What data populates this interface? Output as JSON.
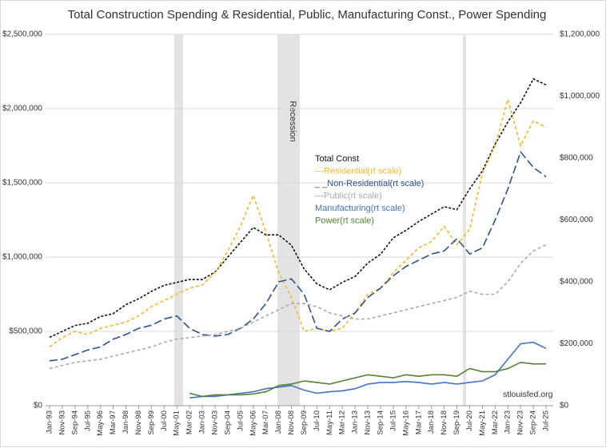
{
  "chart_data": {
    "type": "line",
    "title": "Total Construction Spending & Residential, Public, Manufacturing Const., Power Spending",
    "annotation": "Recession",
    "source": "stlouisfed.org",
    "categories": [
      "Jan-93",
      "Nov-93",
      "Sep-94",
      "Jul-95",
      "May-96",
      "Mar-97",
      "Jan-98",
      "Nov-98",
      "Sep-99",
      "Jul-00",
      "May-01",
      "Mar-02",
      "Jan-03",
      "Nov-03",
      "Sep-04",
      "Jul-05",
      "May-06",
      "Mar-07",
      "Jan-08",
      "Nov-08",
      "Sep-09",
      "Jul-10",
      "May-11",
      "Mar-12",
      "Jan-13",
      "Nov-13",
      "Sep-14",
      "Jul-15",
      "May-16",
      "Mar-17",
      "Jan-18",
      "Nov-18",
      "Sep-19",
      "Jul-20",
      "May-21",
      "Mar-22",
      "Jan-23",
      "Nov-23",
      "Sep-24",
      "Jul-25"
    ],
    "ylim": [
      0,
      2500000
    ],
    "yticks": [
      {
        "value": 0,
        "label": "$0"
      },
      {
        "value": 500000,
        "label": "$500,000"
      },
      {
        "value": 1000000,
        "label": "$1,000,000"
      },
      {
        "value": 1500000,
        "label": "$1,500,000"
      },
      {
        "value": 2000000,
        "label": "$2,000,000"
      },
      {
        "value": 2500000,
        "label": "$2,500,000"
      }
    ],
    "y2lim": [
      0,
      1200000
    ],
    "y2ticks": [
      {
        "value": 0,
        "label": "$0"
      },
      {
        "value": 200000,
        "label": "$200,000"
      },
      {
        "value": 400000,
        "label": "$400,000"
      },
      {
        "value": 600000,
        "label": "$600,000"
      },
      {
        "value": 800000,
        "label": "$800,000"
      },
      {
        "value": 1000000,
        "label": "$1,000,000"
      },
      {
        "value": 1200000,
        "label": "$1,200,000"
      }
    ],
    "grid": true,
    "series": [
      {
        "name": "Total Const",
        "color": "#111111",
        "dash": "3,2",
        "values": [
          460000,
          500000,
          540000,
          555000,
          600000,
          620000,
          680000,
          720000,
          770000,
          810000,
          830000,
          850000,
          850000,
          900000,
          1000000,
          1100000,
          1200000,
          1150000,
          1150000,
          1080000,
          920000,
          820000,
          780000,
          830000,
          870000,
          960000,
          1020000,
          1130000,
          1180000,
          1240000,
          1290000,
          1340000,
          1320000,
          1460000,
          1580000,
          1760000,
          1910000,
          2040000,
          2200000,
          2160000
        ]
      },
      {
        "name": "---Residential(rt scale)",
        "color": "#f4b82a",
        "dash": "4,3",
        "axis": "y2",
        "values": [
          190000,
          220000,
          240000,
          230000,
          250000,
          260000,
          270000,
          290000,
          320000,
          340000,
          360000,
          380000,
          390000,
          430000,
          500000,
          580000,
          680000,
          560000,
          430000,
          350000,
          240000,
          250000,
          240000,
          250000,
          300000,
          360000,
          380000,
          430000,
          470000,
          510000,
          530000,
          580000,
          520000,
          570000,
          750000,
          840000,
          990000,
          840000,
          920000,
          900000
        ]
      },
      {
        "name": "_ _Non-Residential(rt scale)",
        "color": "#2f4f8f",
        "dash": "10,4",
        "axis": "y2",
        "values": [
          145000,
          150000,
          165000,
          180000,
          190000,
          215000,
          230000,
          250000,
          260000,
          280000,
          290000,
          250000,
          230000,
          225000,
          230000,
          250000,
          280000,
          330000,
          400000,
          410000,
          360000,
          250000,
          240000,
          280000,
          300000,
          350000,
          380000,
          420000,
          450000,
          470000,
          490000,
          500000,
          540000,
          490000,
          510000,
          600000,
          700000,
          820000,
          770000,
          740000
        ]
      },
      {
        "name": "---Public(rt scale)",
        "color": "#aaaaaa",
        "dash": "4,3",
        "axis": "y2",
        "values": [
          120000,
          130000,
          140000,
          145000,
          150000,
          160000,
          170000,
          180000,
          190000,
          205000,
          215000,
          220000,
          225000,
          230000,
          240000,
          250000,
          270000,
          290000,
          310000,
          330000,
          330000,
          320000,
          300000,
          290000,
          280000,
          280000,
          290000,
          300000,
          310000,
          320000,
          330000,
          340000,
          350000,
          370000,
          360000,
          360000,
          400000,
          460000,
          500000,
          520000
        ]
      },
      {
        "name": "Manufacturing(rt scale)",
        "color": "#4472c4",
        "axis": "y2",
        "values": [
          null,
          null,
          null,
          null,
          null,
          null,
          null,
          null,
          null,
          null,
          null,
          25000,
          30000,
          30000,
          35000,
          40000,
          45000,
          55000,
          60000,
          65000,
          50000,
          40000,
          45000,
          48000,
          55000,
          70000,
          75000,
          75000,
          78000,
          75000,
          70000,
          75000,
          70000,
          75000,
          80000,
          100000,
          150000,
          200000,
          205000,
          185000
        ]
      },
      {
        "name": "Power(rt scale)",
        "color": "#548235",
        "axis": "y2",
        "values": [
          null,
          null,
          null,
          null,
          null,
          null,
          null,
          null,
          null,
          null,
          null,
          40000,
          30000,
          35000,
          35000,
          35000,
          38000,
          45000,
          65000,
          70000,
          80000,
          75000,
          70000,
          80000,
          90000,
          100000,
          95000,
          90000,
          100000,
          95000,
          100000,
          100000,
          95000,
          120000,
          110000,
          110000,
          120000,
          140000,
          135000,
          135000
        ]
      }
    ]
  }
}
